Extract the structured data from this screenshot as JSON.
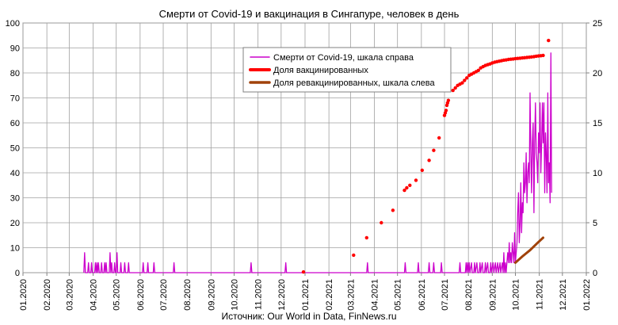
{
  "chart_data": {
    "type": "line",
    "title": "Смерти от Covid-19 и вакцинация в Сингапуре, человек в день",
    "source": "Источник: Our World in Data, FinNews.ru",
    "x_ticks": [
      "01.2020",
      "02.2020",
      "03.2020",
      "04.2020",
      "05.2020",
      "06.2020",
      "07.2020",
      "08.2020",
      "09.2020",
      "10.2020",
      "11.2020",
      "12.2020",
      "01.2021",
      "02.2021",
      "03.2021",
      "04.2021",
      "05.2021",
      "06.2021",
      "07.2021",
      "08.2021",
      "09.2021",
      "10.2021",
      "11.2021",
      "12.2021",
      "01.2022"
    ],
    "y_left": {
      "min": 0,
      "max": 100,
      "ticks": [
        "0",
        "10",
        "20",
        "30",
        "40",
        "50",
        "60",
        "70",
        "80",
        "90",
        "100"
      ]
    },
    "y_right": {
      "min": 0,
      "max": 25,
      "ticks": [
        "0",
        "5",
        "10",
        "15",
        "20",
        "25"
      ]
    },
    "grid": true,
    "legend_position": "top-center",
    "series": [
      {
        "name": "Смерти от Covid-19, шкала справа",
        "axis": "right",
        "color": "#cc00cc",
        "style": "line",
        "points": [
          [
            "2020-03-20",
            0
          ],
          [
            "2020-03-21",
            2
          ],
          [
            "2020-03-22",
            0
          ],
          [
            "2020-03-25",
            0
          ],
          [
            "2020-03-26",
            1
          ],
          [
            "2020-03-27",
            0
          ],
          [
            "2020-03-29",
            0
          ],
          [
            "2020-03-30",
            1
          ],
          [
            "2020-03-31",
            0
          ],
          [
            "2020-04-03",
            0
          ],
          [
            "2020-04-04",
            1
          ],
          [
            "2020-04-05",
            0
          ],
          [
            "2020-04-06",
            1
          ],
          [
            "2020-04-07",
            0
          ],
          [
            "2020-04-08",
            1
          ],
          [
            "2020-04-09",
            0
          ],
          [
            "2020-04-11",
            0
          ],
          [
            "2020-04-12",
            1
          ],
          [
            "2020-04-13",
            0
          ],
          [
            "2020-04-15",
            0
          ],
          [
            "2020-04-16",
            1
          ],
          [
            "2020-04-17",
            0
          ],
          [
            "2020-04-18",
            1
          ],
          [
            "2020-04-19",
            0
          ],
          [
            "2020-04-22",
            0
          ],
          [
            "2020-04-23",
            2
          ],
          [
            "2020-04-24",
            0
          ],
          [
            "2020-04-25",
            1
          ],
          [
            "2020-04-26",
            0
          ],
          [
            "2020-04-28",
            0
          ],
          [
            "2020-04-29",
            1
          ],
          [
            "2020-04-30",
            0
          ],
          [
            "2020-05-01",
            0
          ],
          [
            "2020-05-02",
            2
          ],
          [
            "2020-05-03",
            0
          ],
          [
            "2020-05-06",
            0
          ],
          [
            "2020-05-07",
            1
          ],
          [
            "2020-05-08",
            0
          ],
          [
            "2020-05-11",
            0
          ],
          [
            "2020-05-12",
            1
          ],
          [
            "2020-05-13",
            0
          ],
          [
            "2020-05-16",
            0
          ],
          [
            "2020-05-17",
            1
          ],
          [
            "2020-05-18",
            0
          ],
          [
            "2020-06-04",
            0
          ],
          [
            "2020-06-05",
            1
          ],
          [
            "2020-06-06",
            0
          ],
          [
            "2020-06-10",
            0
          ],
          [
            "2020-06-11",
            1
          ],
          [
            "2020-06-12",
            0
          ],
          [
            "2020-06-18",
            0
          ],
          [
            "2020-06-19",
            1
          ],
          [
            "2020-06-20",
            0
          ],
          [
            "2020-07-14",
            0
          ],
          [
            "2020-07-15",
            1
          ],
          [
            "2020-07-16",
            0
          ],
          [
            "2020-10-22",
            0
          ],
          [
            "2020-10-23",
            1
          ],
          [
            "2020-10-24",
            0
          ],
          [
            "2020-12-06",
            0
          ],
          [
            "2020-12-07",
            1
          ],
          [
            "2020-12-08",
            0
          ],
          [
            "2021-03-22",
            0
          ],
          [
            "2021-03-23",
            1
          ],
          [
            "2021-03-24",
            0
          ],
          [
            "2021-05-10",
            0
          ],
          [
            "2021-05-11",
            1
          ],
          [
            "2021-05-12",
            0
          ],
          [
            "2021-05-27",
            0
          ],
          [
            "2021-05-28",
            1
          ],
          [
            "2021-05-29",
            0
          ],
          [
            "2021-06-10",
            0
          ],
          [
            "2021-06-11",
            1
          ],
          [
            "2021-06-12",
            0
          ],
          [
            "2021-06-16",
            0
          ],
          [
            "2021-06-17",
            1
          ],
          [
            "2021-06-18",
            0
          ],
          [
            "2021-06-26",
            0
          ],
          [
            "2021-06-27",
            1
          ],
          [
            "2021-06-28",
            0
          ],
          [
            "2021-07-20",
            0
          ],
          [
            "2021-07-21",
            1
          ],
          [
            "2021-07-22",
            0
          ],
          [
            "2021-07-28",
            0
          ],
          [
            "2021-07-29",
            1
          ],
          [
            "2021-07-30",
            0
          ],
          [
            "2021-07-31",
            1
          ],
          [
            "2021-08-01",
            0
          ],
          [
            "2021-08-02",
            1
          ],
          [
            "2021-08-03",
            0
          ],
          [
            "2021-08-05",
            1
          ],
          [
            "2021-08-06",
            0
          ],
          [
            "2021-08-08",
            0
          ],
          [
            "2021-08-09",
            1
          ],
          [
            "2021-08-10",
            0
          ],
          [
            "2021-08-12",
            1
          ],
          [
            "2021-08-13",
            0
          ],
          [
            "2021-08-15",
            0
          ],
          [
            "2021-08-16",
            1
          ],
          [
            "2021-08-17",
            0
          ],
          [
            "2021-08-19",
            1
          ],
          [
            "2021-08-20",
            0
          ],
          [
            "2021-08-22",
            0
          ],
          [
            "2021-08-23",
            1
          ],
          [
            "2021-08-24",
            0
          ],
          [
            "2021-08-26",
            1
          ],
          [
            "2021-08-27",
            0
          ],
          [
            "2021-08-29",
            0
          ],
          [
            "2021-08-30",
            1
          ],
          [
            "2021-08-31",
            0
          ],
          [
            "2021-09-02",
            1
          ],
          [
            "2021-09-03",
            0
          ],
          [
            "2021-09-05",
            1
          ],
          [
            "2021-09-06",
            0
          ],
          [
            "2021-09-08",
            1
          ],
          [
            "2021-09-09",
            0
          ],
          [
            "2021-09-11",
            1
          ],
          [
            "2021-09-12",
            0
          ],
          [
            "2021-09-14",
            1
          ],
          [
            "2021-09-15",
            0
          ],
          [
            "2021-09-16",
            2
          ],
          [
            "2021-09-17",
            0
          ],
          [
            "2021-09-18",
            1
          ],
          [
            "2021-09-19",
            0
          ],
          [
            "2021-09-21",
            2
          ],
          [
            "2021-09-22",
            1
          ],
          [
            "2021-09-23",
            3
          ],
          [
            "2021-09-24",
            1
          ],
          [
            "2021-09-25",
            2
          ],
          [
            "2021-09-26",
            1
          ],
          [
            "2021-09-27",
            3
          ],
          [
            "2021-09-28",
            2
          ],
          [
            "2021-09-29",
            1
          ],
          [
            "2021-09-30",
            4
          ],
          [
            "2021-10-01",
            1
          ],
          [
            "2021-10-02",
            2
          ],
          [
            "2021-10-03",
            3
          ],
          [
            "2021-10-04",
            6
          ],
          [
            "2021-10-05",
            8
          ],
          [
            "2021-10-06",
            3
          ],
          [
            "2021-10-07",
            5
          ],
          [
            "2021-10-08",
            9
          ],
          [
            "2021-10-09",
            4
          ],
          [
            "2021-10-10",
            7
          ],
          [
            "2021-10-11",
            6
          ],
          [
            "2021-10-12",
            11
          ],
          [
            "2021-10-13",
            8
          ],
          [
            "2021-10-14",
            9
          ],
          [
            "2021-10-15",
            12
          ],
          [
            "2021-10-16",
            7
          ],
          [
            "2021-10-17",
            10
          ],
          [
            "2021-10-18",
            11
          ],
          [
            "2021-10-19",
            9
          ],
          [
            "2021-10-20",
            18
          ],
          [
            "2021-10-21",
            12
          ],
          [
            "2021-10-22",
            8
          ],
          [
            "2021-10-23",
            13
          ],
          [
            "2021-10-24",
            15
          ],
          [
            "2021-10-25",
            6
          ],
          [
            "2021-10-26",
            13
          ],
          [
            "2021-10-27",
            17
          ],
          [
            "2021-10-28",
            12
          ],
          [
            "2021-10-29",
            11
          ],
          [
            "2021-10-30",
            9
          ],
          [
            "2021-10-31",
            14
          ],
          [
            "2021-11-01",
            12
          ],
          [
            "2021-11-02",
            17
          ],
          [
            "2021-11-03",
            10
          ],
          [
            "2021-11-04",
            13
          ],
          [
            "2021-11-05",
            17
          ],
          [
            "2021-11-06",
            13
          ],
          [
            "2021-11-07",
            17
          ],
          [
            "2021-11-08",
            8
          ],
          [
            "2021-11-09",
            14
          ],
          [
            "2021-11-10",
            12
          ],
          [
            "2021-11-11",
            8
          ],
          [
            "2021-11-12",
            18
          ],
          [
            "2021-11-13",
            9
          ],
          [
            "2021-11-14",
            11
          ],
          [
            "2021-11-15",
            7
          ],
          [
            "2021-11-16",
            22
          ],
          [
            "2021-11-17",
            8
          ]
        ]
      },
      {
        "name": "Доля вакцинированных",
        "axis": "left",
        "color": "#ff0000",
        "style": "dots",
        "points": [
          [
            "2020-12-30",
            0.3
          ],
          [
            "2021-03-05",
            7
          ],
          [
            "2021-03-22",
            14
          ],
          [
            "2021-04-10",
            20
          ],
          [
            "2021-04-25",
            25
          ],
          [
            "2021-05-10",
            33
          ],
          [
            "2021-05-13",
            34
          ],
          [
            "2021-05-17",
            35
          ],
          [
            "2021-05-25",
            37
          ],
          [
            "2021-06-02",
            41
          ],
          [
            "2021-06-11",
            45
          ],
          [
            "2021-06-17",
            49
          ],
          [
            "2021-06-24",
            54
          ],
          [
            "2021-07-01",
            63
          ],
          [
            "2021-07-02",
            64
          ],
          [
            "2021-07-03",
            65
          ],
          [
            "2021-07-04",
            67
          ],
          [
            "2021-07-05",
            68
          ],
          [
            "2021-07-06",
            69
          ],
          [
            "2021-07-12",
            73
          ],
          [
            "2021-07-15",
            74
          ],
          [
            "2021-07-18",
            75
          ],
          [
            "2021-07-21",
            75.5
          ],
          [
            "2021-07-24",
            76
          ],
          [
            "2021-07-27",
            77
          ],
          [
            "2021-07-30",
            78
          ],
          [
            "2021-08-02",
            79
          ],
          [
            "2021-08-05",
            79.5
          ],
          [
            "2021-08-08",
            80
          ],
          [
            "2021-08-11",
            80.5
          ],
          [
            "2021-08-14",
            81
          ],
          [
            "2021-08-17",
            82
          ],
          [
            "2021-08-20",
            82.5
          ],
          [
            "2021-08-23",
            83
          ],
          [
            "2021-08-26",
            83.3
          ],
          [
            "2021-08-29",
            83.6
          ],
          [
            "2021-09-01",
            84
          ],
          [
            "2021-09-04",
            84.3
          ],
          [
            "2021-09-07",
            84.5
          ],
          [
            "2021-09-10",
            84.7
          ],
          [
            "2021-09-13",
            84.9
          ],
          [
            "2021-09-16",
            85.1
          ],
          [
            "2021-09-19",
            85.2
          ],
          [
            "2021-09-22",
            85.4
          ],
          [
            "2021-09-25",
            85.5
          ],
          [
            "2021-09-28",
            85.6
          ],
          [
            "2021-10-01",
            85.7
          ],
          [
            "2021-10-04",
            85.8
          ],
          [
            "2021-10-07",
            85.9
          ],
          [
            "2021-10-10",
            86.0
          ],
          [
            "2021-10-13",
            86.1
          ],
          [
            "2021-10-16",
            86.2
          ],
          [
            "2021-10-19",
            86.3
          ],
          [
            "2021-10-22",
            86.4
          ],
          [
            "2021-10-25",
            86.5
          ],
          [
            "2021-10-28",
            86.7
          ],
          [
            "2021-10-31",
            86.8
          ],
          [
            "2021-11-03",
            86.9
          ],
          [
            "2021-11-06",
            87
          ],
          [
            "2021-11-13",
            93
          ]
        ]
      },
      {
        "name": "Доля ревакцинированных, шкала слева",
        "axis": "left",
        "color": "#a0420a",
        "style": "thick-line",
        "points": [
          [
            "2021-10-01",
            4
          ],
          [
            "2021-10-10",
            6.5
          ],
          [
            "2021-10-20",
            9
          ],
          [
            "2021-10-30",
            12
          ],
          [
            "2021-11-06",
            14
          ]
        ]
      }
    ]
  }
}
